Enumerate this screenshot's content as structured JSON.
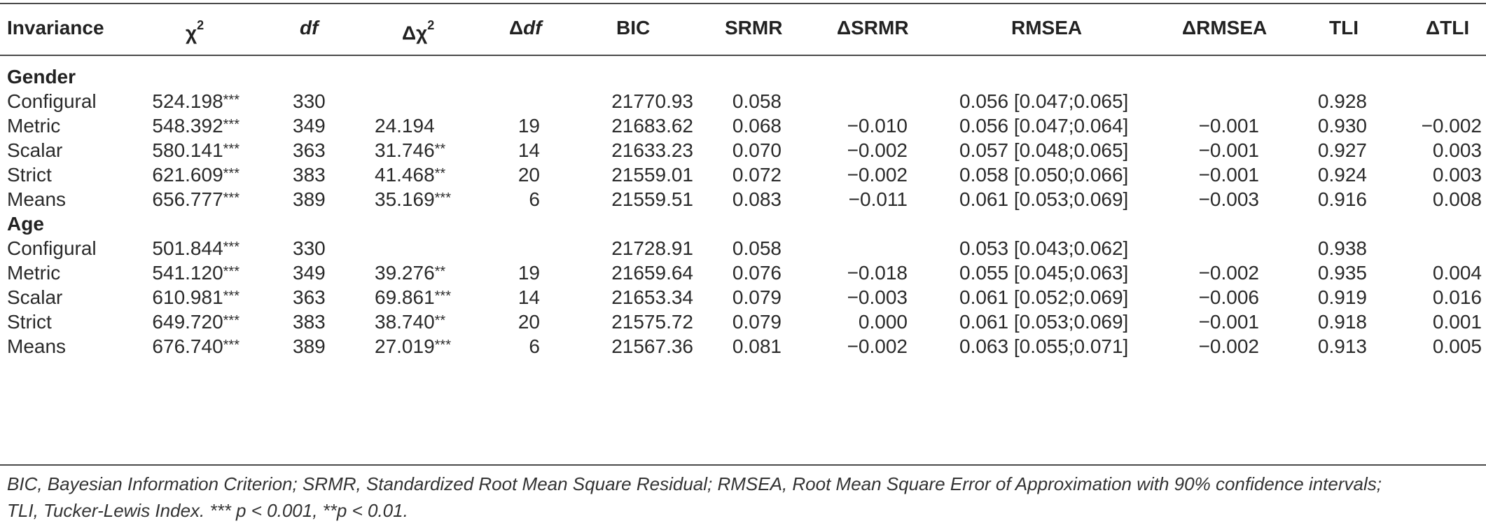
{
  "headers": {
    "invariance": "Invariance",
    "chi2": "χ",
    "chi2_sup": "2",
    "df": "df",
    "dchi2": "Δχ",
    "dchi2_sup": "2",
    "d_df": "Δ",
    "d_df_italic": "df",
    "bic": "BIC",
    "srmr": "SRMR",
    "dsrmr": "ΔSRMR",
    "rmsea": "RMSEA",
    "drmsea": "ΔRMSEA",
    "tli": "TLI",
    "dtli": "ΔTLI"
  },
  "sections": [
    {
      "title": "Gender",
      "rows": [
        {
          "inv": "Configural",
          "chi2": "524.198",
          "chi2_sig": "***",
          "df": "330",
          "dchi2": "",
          "dchi2_sig": "",
          "ddf": "",
          "bic": "21770.93",
          "srmr": "0.058",
          "dsrmr": "",
          "rmsea": "0.056 [0.047;0.065]",
          "drmsea": "",
          "tli": "0.928",
          "dtli": ""
        },
        {
          "inv": "Metric",
          "chi2": "548.392",
          "chi2_sig": "***",
          "df": "349",
          "dchi2": "24.194",
          "dchi2_sig": "",
          "ddf": "19",
          "bic": "21683.62",
          "srmr": "0.068",
          "dsrmr": "−0.010",
          "rmsea": "0.056 [0.047;0.064]",
          "drmsea": "−0.001",
          "tli": "0.930",
          "dtli": "−0.002"
        },
        {
          "inv": "Scalar",
          "chi2": "580.141",
          "chi2_sig": "***",
          "df": "363",
          "dchi2": "31.746",
          "dchi2_sig": "**",
          "ddf": "14",
          "bic": "21633.23",
          "srmr": "0.070",
          "dsrmr": "−0.002",
          "rmsea": "0.057 [0.048;0.065]",
          "drmsea": "−0.001",
          "tli": "0.927",
          "dtli": "0.003"
        },
        {
          "inv": "Strict",
          "chi2": "621.609",
          "chi2_sig": "***",
          "df": "383",
          "dchi2": "41.468",
          "dchi2_sig": "**",
          "ddf": "20",
          "bic": "21559.01",
          "srmr": "0.072",
          "dsrmr": "−0.002",
          "rmsea": "0.058 [0.050;0.066]",
          "drmsea": "−0.001",
          "tli": "0.924",
          "dtli": "0.003"
        },
        {
          "inv": "Means",
          "chi2": "656.777",
          "chi2_sig": "***",
          "df": "389",
          "dchi2": "35.169",
          "dchi2_sig": "***",
          "ddf": "6",
          "bic": "21559.51",
          "srmr": "0.083",
          "dsrmr": "−0.011",
          "rmsea": "0.061 [0.053;0.069]",
          "drmsea": "−0.003",
          "tli": "0.916",
          "dtli": "0.008"
        }
      ]
    },
    {
      "title": "Age",
      "rows": [
        {
          "inv": "Configural",
          "chi2": "501.844",
          "chi2_sig": "***",
          "df": "330",
          "dchi2": "",
          "dchi2_sig": "",
          "ddf": "",
          "bic": "21728.91",
          "srmr": "0.058",
          "dsrmr": "",
          "rmsea": "0.053 [0.043;0.062]",
          "drmsea": "",
          "tli": "0.938",
          "dtli": ""
        },
        {
          "inv": "Metric",
          "chi2": "541.120",
          "chi2_sig": "***",
          "df": "349",
          "dchi2": "39.276",
          "dchi2_sig": "**",
          "ddf": "19",
          "bic": "21659.64",
          "srmr": "0.076",
          "dsrmr": "−0.018",
          "rmsea": "0.055 [0.045;0.063]",
          "drmsea": "−0.002",
          "tli": "0.935",
          "dtli": "0.004"
        },
        {
          "inv": "Scalar",
          "chi2": "610.981",
          "chi2_sig": "***",
          "df": "363",
          "dchi2": "69.861",
          "dchi2_sig": "***",
          "ddf": "14",
          "bic": "21653.34",
          "srmr": "0.079",
          "dsrmr": "−0.003",
          "rmsea": "0.061 [0.052;0.069]",
          "drmsea": "−0.006",
          "tli": "0.919",
          "dtli": "0.016"
        },
        {
          "inv": "Strict",
          "chi2": "649.720",
          "chi2_sig": "***",
          "df": "383",
          "dchi2": "38.740",
          "dchi2_sig": "**",
          "ddf": "20",
          "bic": "21575.72",
          "srmr": "0.079",
          "dsrmr": "0.000",
          "rmsea": "0.061 [0.053;0.069]",
          "drmsea": "−0.001",
          "tli": "0.918",
          "dtli": "0.001"
        },
        {
          "inv": "Means",
          "chi2": "676.740",
          "chi2_sig": "***",
          "df": "389",
          "dchi2": "27.019",
          "dchi2_sig": "***",
          "ddf": "6",
          "bic": "21567.36",
          "srmr": "0.081",
          "dsrmr": "−0.002",
          "rmsea": "0.063 [0.055;0.071]",
          "drmsea": "−0.002",
          "tli": "0.913",
          "dtli": "0.005"
        }
      ]
    }
  ],
  "footnote": {
    "line1": "BIC, Bayesian Information Criterion; SRMR, Standardized Root Mean Square Residual; RMSEA, Root Mean Square Error of Approximation with 90% confidence intervals;",
    "line2": "TLI, Tucker-Lewis Index. *** p < 0.001, **p < 0.01."
  }
}
